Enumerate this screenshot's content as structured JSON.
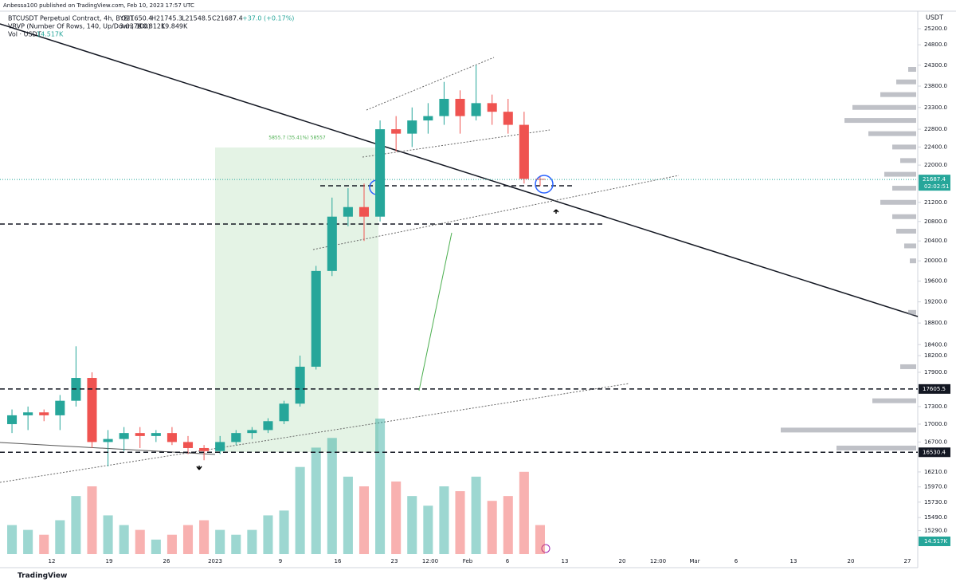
{
  "chart_data": {
    "type": "candlestick",
    "publisher": "Anbessa100 published on TradingView.com, Feb 10, 2023 17:57 UTC",
    "symbol": "BTCUSDT Perpetual Contract, 4h, BYBIT",
    "ohlc_labels": [
      "O21650.4",
      "H21745.3",
      "L21548.5",
      "C21687.4",
      "+37.0 (+0.17%)"
    ],
    "vrvp_label": "VRVP (Number Of Rows, 140, Up/Down, 100)",
    "vrvp_values": [
      "3.037K",
      "10.812K",
      "19.849K"
    ],
    "vol_label": "Vol · USDT",
    "vol_value": "14.517K",
    "currency": "USDT",
    "range_label": "5855.7 (35.41%) 58557",
    "price_tags": [
      {
        "value": 21687.4,
        "label": "21687.4"
      },
      {
        "value": 17605.5,
        "label": "17605.5"
      },
      {
        "value": 16530.4,
        "label": "16530.4"
      }
    ],
    "countdown": "02:02:51",
    "brand": "TradingView",
    "log_scale": true,
    "ylim": [
      14760,
      25930
    ],
    "yticks": [
      {
        "value": 25200,
        "label": "25200.0"
      },
      {
        "value": 24800,
        "label": "24800.0"
      },
      {
        "value": 24300,
        "label": "24300.0"
      },
      {
        "value": 23800,
        "label": "23800.0"
      },
      {
        "value": 23300,
        "label": "23300.0"
      },
      {
        "value": 22800,
        "label": "22800.0"
      },
      {
        "value": 22400,
        "label": "22400.0"
      },
      {
        "value": 22000,
        "label": "22000.0"
      },
      {
        "value": 21200,
        "label": "21200.0"
      },
      {
        "value": 20800,
        "label": "20800.0"
      },
      {
        "value": 20400,
        "label": "20400.0"
      },
      {
        "value": 20000,
        "label": "20000.0"
      },
      {
        "value": 19600,
        "label": "19600.0"
      },
      {
        "value": 19200,
        "label": "19200.0"
      },
      {
        "value": 18800,
        "label": "18800.0"
      },
      {
        "value": 18400,
        "label": "18400.0"
      },
      {
        "value": 18200,
        "label": "18200.0"
      },
      {
        "value": 17900,
        "label": "17900.0"
      },
      {
        "value": 17300,
        "label": "17300.0"
      },
      {
        "value": 17000,
        "label": "17000.0"
      },
      {
        "value": 16700,
        "label": "16700.0"
      },
      {
        "value": 16210,
        "label": "16210.0"
      },
      {
        "value": 15970,
        "label": "15970.0"
      },
      {
        "value": 15730,
        "label": "15730.0"
      },
      {
        "value": 15490,
        "label": "15490.0"
      },
      {
        "value": 15290,
        "label": "15290.0"
      }
    ],
    "time_labels": [
      "12",
      "19",
      "26",
      "2023",
      "9",
      "16",
      "23",
      "12:00",
      "Feb",
      "6",
      "13",
      "20",
      "12:00",
      "Mar",
      "6",
      "13",
      "20",
      "27"
    ],
    "candles": [
      [
        17000,
        17250,
        16850,
        17150
      ],
      [
        17150,
        17300,
        16900,
        17200
      ],
      [
        17200,
        17250,
        17050,
        17150
      ],
      [
        17150,
        17500,
        16900,
        17400
      ],
      [
        17400,
        18370,
        17300,
        17800
      ],
      [
        17800,
        17900,
        16600,
        16700
      ],
      [
        16700,
        16900,
        16300,
        16750
      ],
      [
        16750,
        16950,
        16550,
        16850
      ],
      [
        16850,
        16950,
        16600,
        16800
      ],
      [
        16800,
        16900,
        16700,
        16850
      ],
      [
        16850,
        16950,
        16650,
        16700
      ],
      [
        16700,
        16800,
        16500,
        16600
      ],
      [
        16600,
        16650,
        16400,
        16550
      ],
      [
        16550,
        16800,
        16500,
        16700
      ],
      [
        16700,
        16900,
        16650,
        16850
      ],
      [
        16850,
        16950,
        16750,
        16900
      ],
      [
        16900,
        17100,
        16850,
        17050
      ],
      [
        17050,
        17400,
        17000,
        17350
      ],
      [
        17350,
        18200,
        17300,
        18000
      ],
      [
        18000,
        19900,
        17950,
        19800
      ],
      [
        19800,
        21300,
        19700,
        20900
      ],
      [
        20900,
        21500,
        20700,
        21100
      ],
      [
        21100,
        21600,
        20400,
        20900
      ],
      [
        20900,
        23000,
        20800,
        22800
      ],
      [
        22800,
        23100,
        22300,
        22700
      ],
      [
        22700,
        23300,
        22400,
        23000
      ],
      [
        23000,
        23400,
        22700,
        23100
      ],
      [
        23100,
        23900,
        22900,
        23500
      ],
      [
        23500,
        23700,
        22700,
        23100
      ],
      [
        23100,
        24300,
        23000,
        23400
      ],
      [
        23400,
        23600,
        22900,
        23200
      ],
      [
        23200,
        23500,
        22700,
        22900
      ],
      [
        22900,
        23200,
        21600,
        21700
      ],
      [
        21700,
        21745,
        21548,
        21687
      ]
    ],
    "volumes": [
      30,
      25,
      20,
      35,
      60,
      70,
      40,
      30,
      25,
      15,
      20,
      30,
      35,
      25,
      20,
      25,
      40,
      45,
      90,
      110,
      120,
      80,
      70,
      140,
      75,
      60,
      50,
      70,
      65,
      80,
      55,
      60,
      85,
      30
    ],
    "profile_prices": [
      24200,
      23900,
      23600,
      23300,
      23000,
      22700,
      22400,
      22100,
      21800,
      21500,
      21200,
      20900,
      20600,
      20300,
      20000,
      19000,
      18000,
      17400,
      16900,
      16600
    ],
    "profile_values": [
      10,
      25,
      45,
      80,
      90,
      60,
      30,
      20,
      40,
      30,
      45,
      30,
      25,
      15,
      8,
      10,
      20,
      55,
      170,
      100
    ],
    "up_color": "#26a69a",
    "down_color": "#ef5350"
  }
}
